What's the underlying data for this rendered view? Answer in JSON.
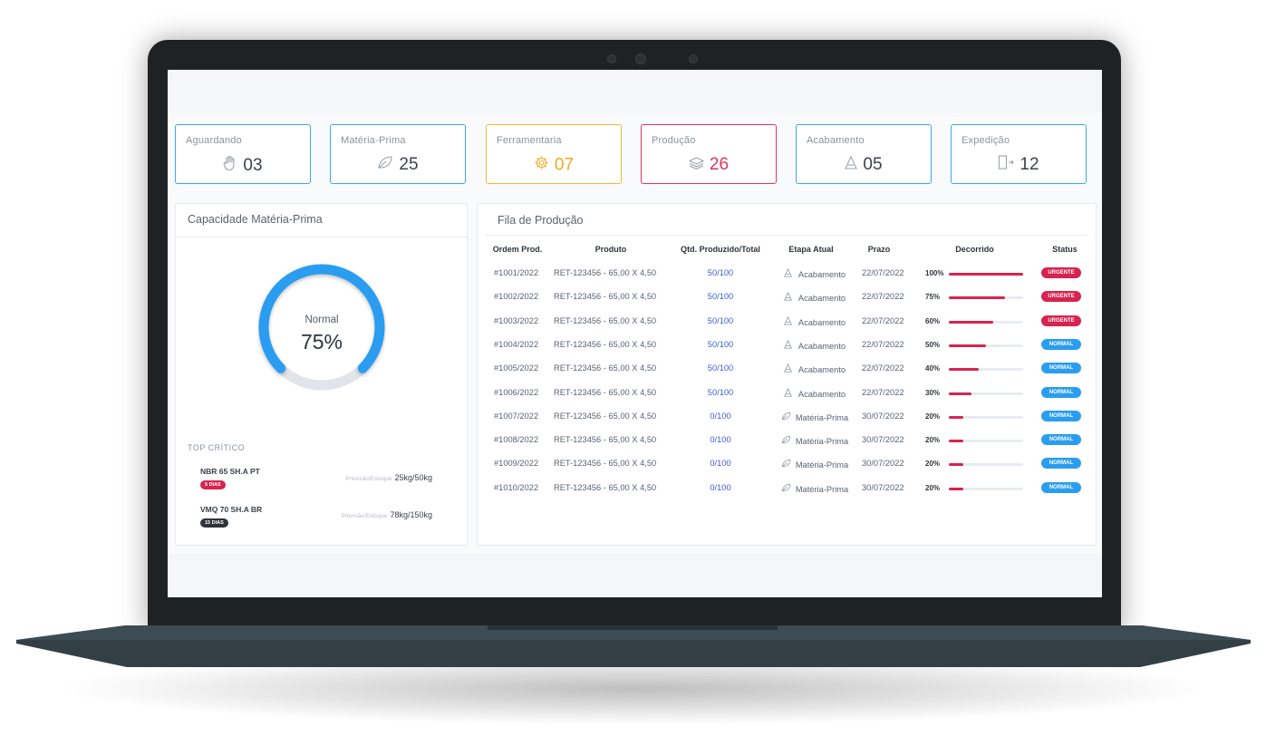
{
  "stats": [
    {
      "label": "Aguardando",
      "value": "03",
      "icon": "hand-icon",
      "color": "#3aa8ef"
    },
    {
      "label": "Matéria-Prima",
      "value": "25",
      "icon": "leaf-icon",
      "color": "#3aa8ef"
    },
    {
      "label": "Ferramentaria",
      "value": "07",
      "icon": "gear-icon",
      "color": "#f4b730"
    },
    {
      "label": "Produção",
      "value": "26",
      "icon": "layers-icon",
      "color": "#e0335f"
    },
    {
      "label": "Acabamento",
      "value": "05",
      "icon": "triangle-icon",
      "color": "#3aa8ef"
    },
    {
      "label": "Expedição",
      "value": "12",
      "icon": "exit-door-icon",
      "color": "#3aa8ef"
    }
  ],
  "capacity": {
    "title": "Capacidade Matéria-Prima",
    "gauge_label": "Normal",
    "gauge_value": "75%",
    "gauge_fraction": 0.75,
    "top_critico_title": "TOP CRÍTICO",
    "items": [
      {
        "name": "NBR 65 SH.A PT",
        "badge": "5 DIAS",
        "badge_color": "#d8234f",
        "muted": "Previsão/Estoque",
        "amount": "25kg/50kg"
      },
      {
        "name": "VMQ 70 SH.A BR",
        "badge": "15 DIAS",
        "badge_color": "#2f343a",
        "muted": "Previsão/Estoque",
        "amount": "78kg/150kg"
      }
    ]
  },
  "queue": {
    "title": "Fila de Produção",
    "headers": [
      "Ordem Prod.",
      "Produto",
      "Qtd. Produzido/Total",
      "Etapa Atual",
      "Prazo",
      "Decorrido",
      "Status"
    ],
    "rows": [
      {
        "order": "#1001/2022",
        "product": "RET-123456 - 65,00 X 4,50",
        "qty": "50/100",
        "stage": "Acabamento",
        "stage_icon": "triangle-icon",
        "deadline": "22/07/2022",
        "progress_label": "100%",
        "progress": 1.0,
        "status": "URGENTE"
      },
      {
        "order": "#1002/2022",
        "product": "RET-123456 - 65,00 X 4,50",
        "qty": "50/100",
        "stage": "Acabamento",
        "stage_icon": "triangle-icon",
        "deadline": "22/07/2022",
        "progress_label": "75%",
        "progress": 0.75,
        "status": "URGENTE"
      },
      {
        "order": "#1003/2022",
        "product": "RET-123456 - 65,00 X 4,50",
        "qty": "50/100",
        "stage": "Acabamento",
        "stage_icon": "triangle-icon",
        "deadline": "22/07/2022",
        "progress_label": "60%",
        "progress": 0.6,
        "status": "URGENTE"
      },
      {
        "order": "#1004/2022",
        "product": "RET-123456 - 65,00 X 4,50",
        "qty": "50/100",
        "stage": "Acabamento",
        "stage_icon": "triangle-icon",
        "deadline": "22/07/2022",
        "progress_label": "50%",
        "progress": 0.5,
        "status": "NORMAL"
      },
      {
        "order": "#1005/2022",
        "product": "RET-123456 - 65,00 X 4,50",
        "qty": "50/100",
        "stage": "Acabamento",
        "stage_icon": "triangle-icon",
        "deadline": "22/07/2022",
        "progress_label": "40%",
        "progress": 0.4,
        "status": "NORMAL"
      },
      {
        "order": "#1006/2022",
        "product": "RET-123456 - 65,00 X 4,50",
        "qty": "50/100",
        "stage": "Acabamento",
        "stage_icon": "triangle-icon",
        "deadline": "22/07/2022",
        "progress_label": "30%",
        "progress": 0.3,
        "status": "NORMAL"
      },
      {
        "order": "#1007/2022",
        "product": "RET-123456 - 65,00 X 4,50",
        "qty": "0/100",
        "stage": "Matéria-Prima",
        "stage_icon": "leaf-icon",
        "deadline": "30/07/2022",
        "progress_label": "20%",
        "progress": 0.2,
        "status": "NORMAL"
      },
      {
        "order": "#1008/2022",
        "product": "RET-123456 - 65,00 X 4,50",
        "qty": "0/100",
        "stage": "Matéria-Prima",
        "stage_icon": "leaf-icon",
        "deadline": "30/07/2022",
        "progress_label": "20%",
        "progress": 0.2,
        "status": "NORMAL"
      },
      {
        "order": "#1009/2022",
        "product": "RET-123456 - 65,00 X 4,50",
        "qty": "0/100",
        "stage": "Matéria-Prima",
        "stage_icon": "leaf-icon",
        "deadline": "30/07/2022",
        "progress_label": "20%",
        "progress": 0.2,
        "status": "NORMAL"
      },
      {
        "order": "#1010/2022",
        "product": "RET-123456 - 65,00 X 4,50",
        "qty": "0/100",
        "stage": "Matéria-Prima",
        "stage_icon": "leaf-icon",
        "deadline": "30/07/2022",
        "progress_label": "20%",
        "progress": 0.2,
        "status": "NORMAL"
      }
    ]
  },
  "colors": {
    "accent_blue": "#3aa8ef",
    "warning_orange": "#f4b730",
    "danger_red": "#d8234f",
    "gauge_blue": "#2a9df0"
  }
}
